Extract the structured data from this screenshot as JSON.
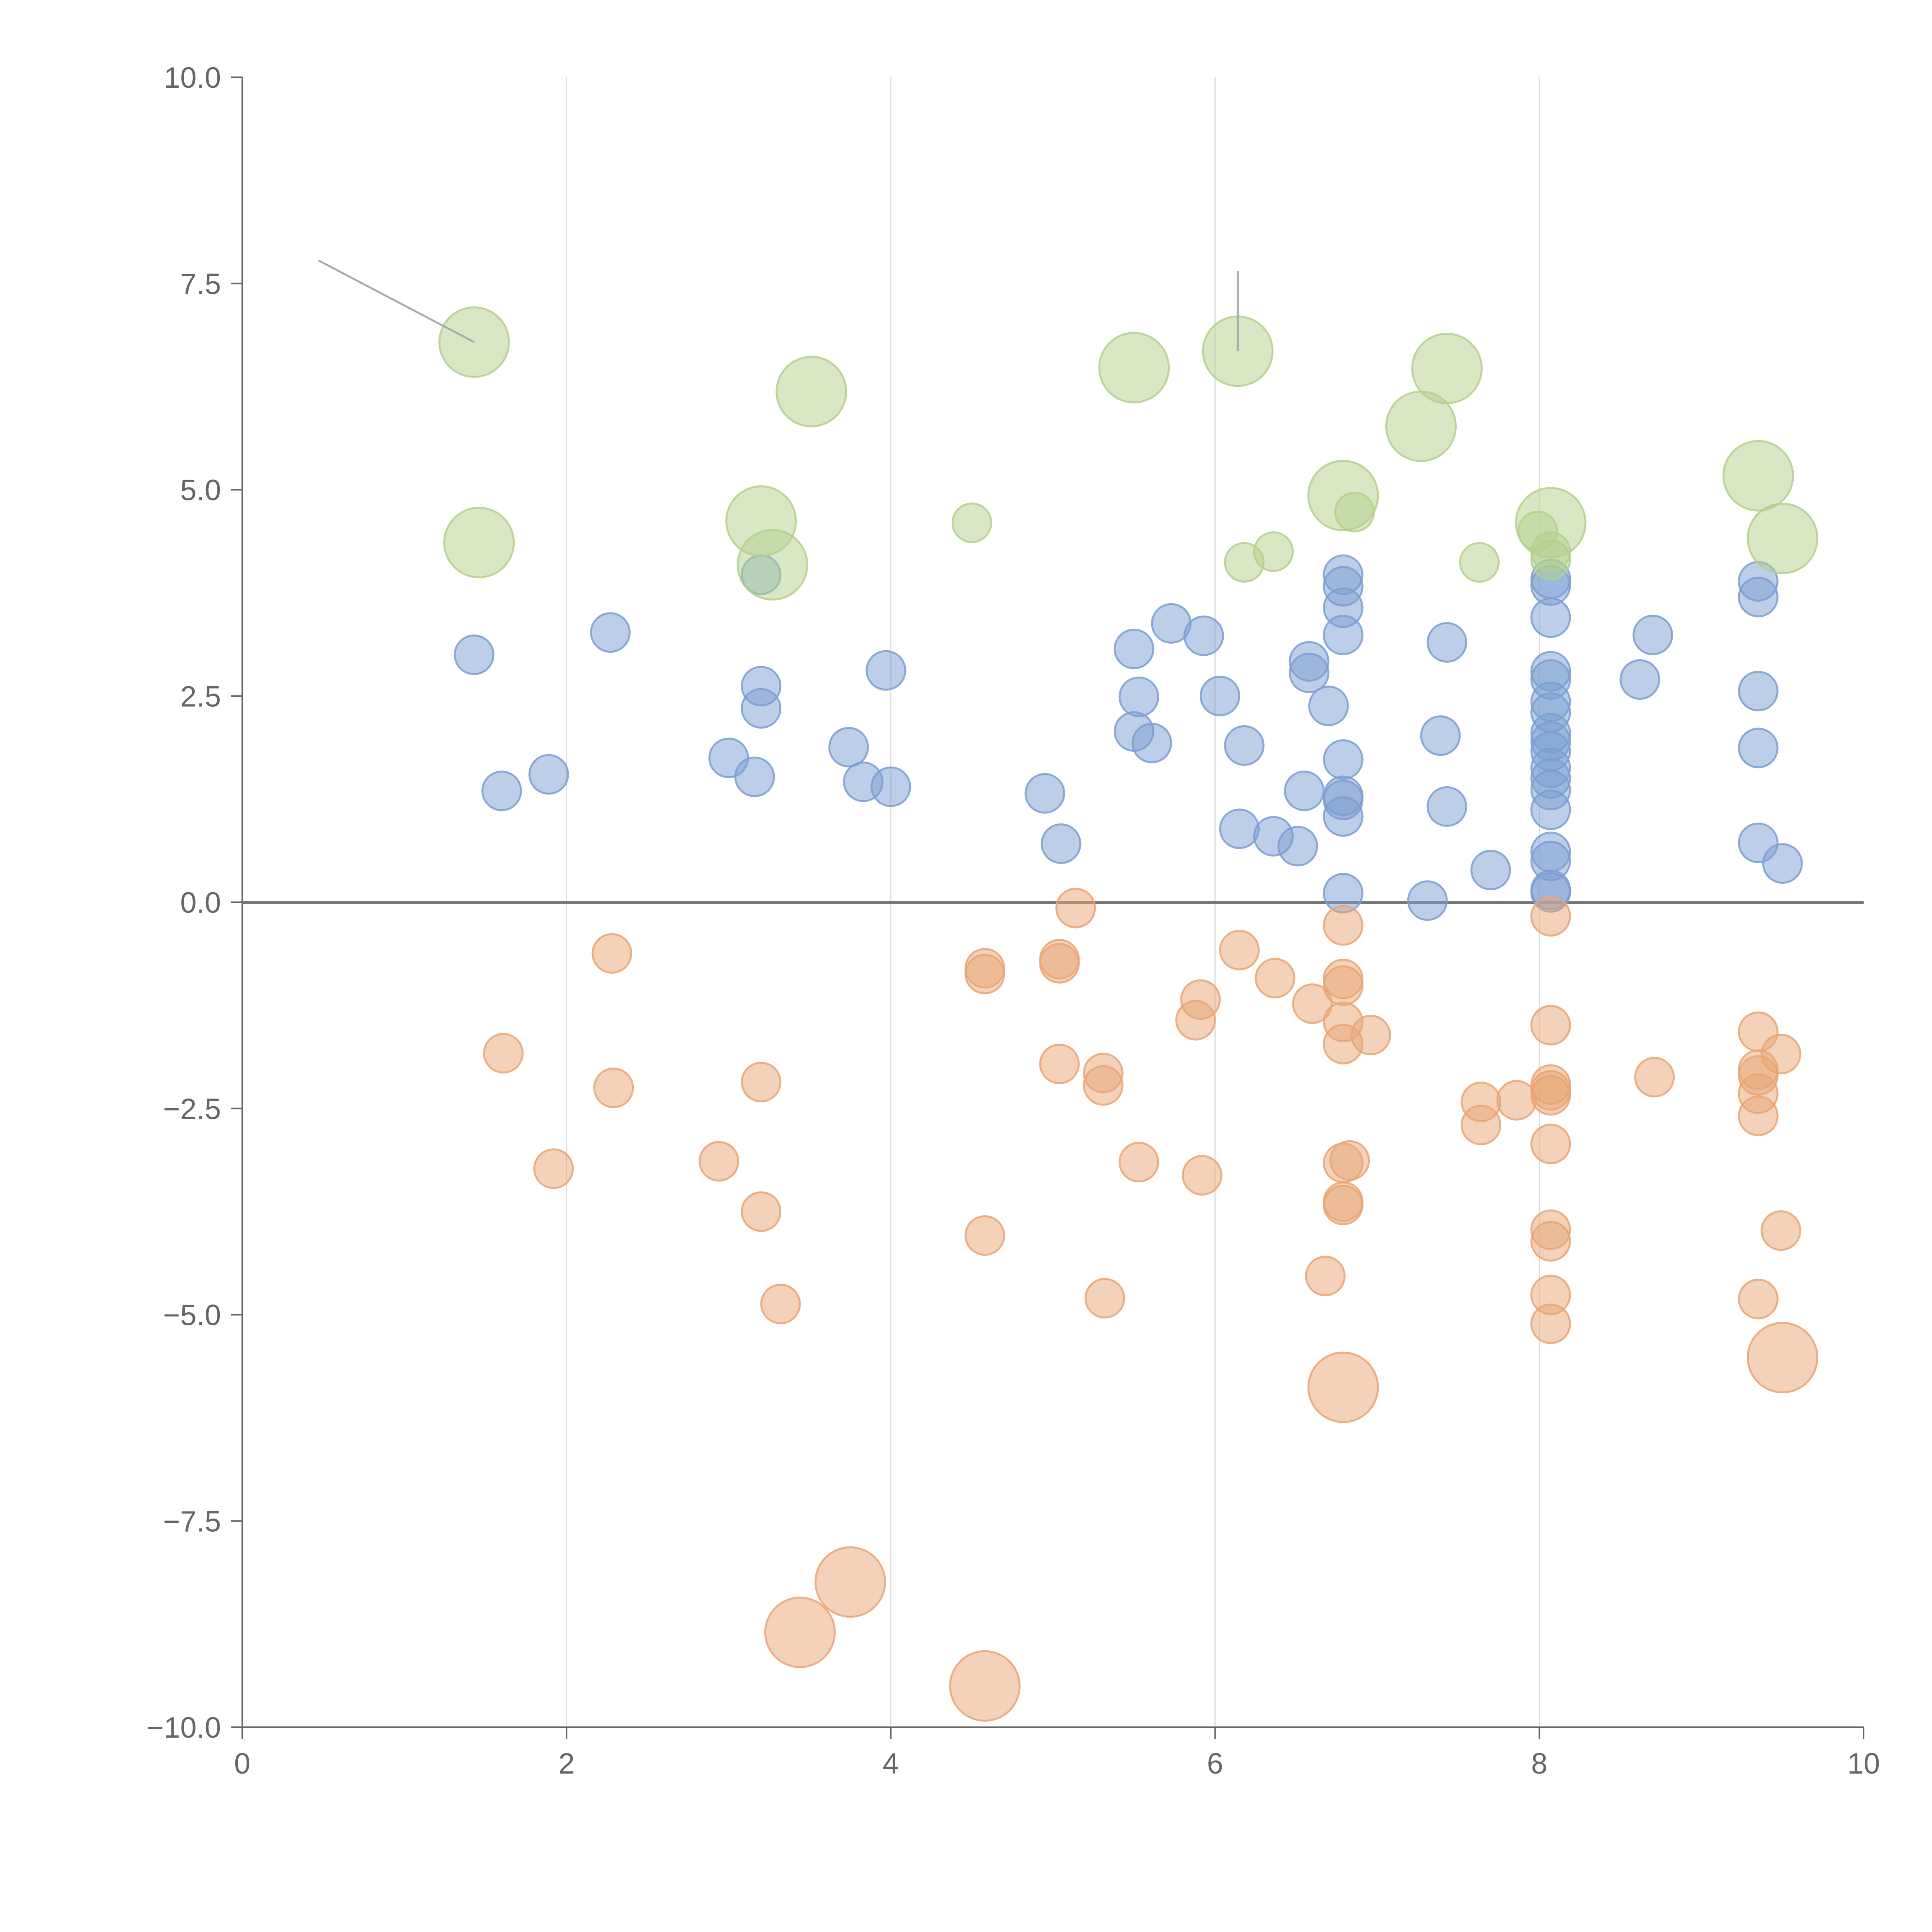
{
  "chart_data": {
    "type": "scatter",
    "title": "",
    "xlabel": "",
    "ylabel": "",
    "xlim": [
      0,
      10
    ],
    "ylim": [
      -10,
      10
    ],
    "x_ticks": [
      0,
      2,
      4,
      6,
      8,
      10
    ],
    "y_ticks": [
      -10,
      -7.5,
      -5,
      -2.5,
      0,
      2.5,
      5,
      7.5,
      10
    ],
    "x_tick_labels": [
      "0",
      "2",
      "4",
      "6",
      "8",
      "10"
    ],
    "y_tick_labels": [
      "−10.0",
      "−7.5",
      "−5.0",
      "−2.5",
      "0.0",
      "2.5",
      "5.0",
      "7.5",
      "10.0"
    ],
    "vertical_gridlines": [
      2,
      4,
      6,
      8
    ],
    "zero_line": 0,
    "colors": {
      "blue": "#7b9ed1",
      "orange": "#e8a574",
      "green": "#b3cf8c",
      "axis": "#666666",
      "grid": "#dddddd",
      "zero": "#777777"
    },
    "series": [
      {
        "name": "blue",
        "color": "#7b9ed1",
        "size": "small",
        "points": [
          [
            1.43,
            3.0
          ],
          [
            1.6,
            1.35
          ],
          [
            1.89,
            1.55
          ],
          [
            2.27,
            3.27
          ],
          [
            3.0,
            1.75
          ],
          [
            3.16,
            1.52
          ],
          [
            3.2,
            2.62
          ],
          [
            3.2,
            2.35
          ],
          [
            3.2,
            3.97
          ],
          [
            3.74,
            1.88
          ],
          [
            3.83,
            1.46
          ],
          [
            3.97,
            2.81
          ],
          [
            4.0,
            1.4
          ],
          [
            4.95,
            1.32
          ],
          [
            5.05,
            0.71
          ],
          [
            5.5,
            3.07
          ],
          [
            5.5,
            2.07
          ],
          [
            5.53,
            2.49
          ],
          [
            5.61,
            1.93
          ],
          [
            5.73,
            3.38
          ],
          [
            5.93,
            3.23
          ],
          [
            6.03,
            2.5
          ],
          [
            6.15,
            0.89
          ],
          [
            6.18,
            1.9
          ],
          [
            6.36,
            0.8
          ],
          [
            6.51,
            0.68
          ],
          [
            6.55,
            1.35
          ],
          [
            6.58,
            2.92
          ],
          [
            6.58,
            2.78
          ],
          [
            6.7,
            2.38
          ],
          [
            6.79,
            3.97
          ],
          [
            6.79,
            3.83
          ],
          [
            6.79,
            3.57
          ],
          [
            6.79,
            3.24
          ],
          [
            6.79,
            1.73
          ],
          [
            6.79,
            1.29
          ],
          [
            6.79,
            1.24
          ],
          [
            6.79,
            1.04
          ],
          [
            6.79,
            0.11
          ],
          [
            7.31,
            0.02
          ],
          [
            7.39,
            2.02
          ],
          [
            7.43,
            3.15
          ],
          [
            7.43,
            1.16
          ],
          [
            7.7,
            0.39
          ],
          [
            8.07,
            3.92
          ],
          [
            8.07,
            3.84
          ],
          [
            8.07,
            3.45
          ],
          [
            8.07,
            2.8
          ],
          [
            8.07,
            2.7
          ],
          [
            8.07,
            2.43
          ],
          [
            8.07,
            2.3
          ],
          [
            8.07,
            2.05
          ],
          [
            8.07,
            1.95
          ],
          [
            8.07,
            1.83
          ],
          [
            8.07,
            1.63
          ],
          [
            8.07,
            1.5
          ],
          [
            8.07,
            1.36
          ],
          [
            8.07,
            1.12
          ],
          [
            8.07,
            0.61
          ],
          [
            8.07,
            0.5
          ],
          [
            8.07,
            0.15
          ],
          [
            8.07,
            0.12
          ],
          [
            8.62,
            2.7
          ],
          [
            8.7,
            3.24
          ],
          [
            9.35,
            3.89
          ],
          [
            9.35,
            3.7
          ],
          [
            9.35,
            2.56
          ],
          [
            9.35,
            1.87
          ],
          [
            9.35,
            0.72
          ],
          [
            9.5,
            0.47
          ]
        ]
      },
      {
        "name": "orange",
        "color": "#e8a574",
        "size": "small",
        "points": [
          [
            1.61,
            -1.83
          ],
          [
            1.92,
            -3.23
          ],
          [
            2.28,
            -0.62
          ],
          [
            2.29,
            -2.25
          ],
          [
            2.94,
            -3.14
          ],
          [
            3.2,
            -2.18
          ],
          [
            3.2,
            -3.75
          ],
          [
            3.32,
            -4.87
          ],
          [
            4.58,
            -0.8
          ],
          [
            4.58,
            -0.87
          ],
          [
            4.58,
            -4.04
          ],
          [
            5.04,
            -0.69
          ],
          [
            5.04,
            -0.74
          ],
          [
            5.04,
            -1.96
          ],
          [
            5.14,
            -0.07
          ],
          [
            5.31,
            -2.07
          ],
          [
            5.31,
            -2.22
          ],
          [
            5.32,
            -4.8
          ],
          [
            5.53,
            -3.15
          ],
          [
            5.88,
            -1.43
          ],
          [
            5.91,
            -1.18
          ],
          [
            5.92,
            -3.31
          ],
          [
            6.15,
            -0.58
          ],
          [
            6.37,
            -0.92
          ],
          [
            6.6,
            -1.23
          ],
          [
            6.68,
            -4.53
          ],
          [
            6.79,
            -0.28
          ],
          [
            6.79,
            -0.93
          ],
          [
            6.79,
            -1.01
          ],
          [
            6.79,
            -1.45
          ],
          [
            6.79,
            -1.72
          ],
          [
            6.79,
            -3.16
          ],
          [
            6.83,
            -3.13
          ],
          [
            6.79,
            -3.63
          ],
          [
            6.79,
            -3.67
          ],
          [
            6.96,
            -1.61
          ],
          [
            7.64,
            -2.42
          ],
          [
            7.64,
            -2.7
          ],
          [
            7.86,
            -2.4
          ],
          [
            8.07,
            -0.17
          ],
          [
            8.07,
            -1.49
          ],
          [
            8.07,
            -2.21
          ],
          [
            8.07,
            -2.28
          ],
          [
            8.07,
            -2.34
          ],
          [
            8.07,
            -2.93
          ],
          [
            8.07,
            -3.97
          ],
          [
            8.07,
            -4.11
          ],
          [
            8.07,
            -4.76
          ],
          [
            8.07,
            -5.11
          ],
          [
            8.71,
            -2.12
          ],
          [
            9.35,
            -1.57
          ],
          [
            9.35,
            -2.03
          ],
          [
            9.35,
            -2.1
          ],
          [
            9.35,
            -2.32
          ],
          [
            9.35,
            -2.59
          ],
          [
            9.35,
            -4.81
          ],
          [
            9.49,
            -1.84
          ],
          [
            9.49,
            -3.98
          ]
        ]
      },
      {
        "name": "green",
        "color": "#b3cf8c",
        "size": "small",
        "points": [
          [
            4.5,
            4.6
          ],
          [
            6.18,
            4.12
          ],
          [
            6.36,
            4.25
          ],
          [
            6.86,
            4.73
          ],
          [
            7.63,
            4.12
          ],
          [
            7.99,
            4.5
          ],
          [
            8.07,
            4.25
          ],
          [
            8.07,
            4.15
          ]
        ]
      },
      {
        "name": "green-large",
        "color": "#b3cf8c",
        "size": "large",
        "points": [
          [
            1.43,
            6.79
          ],
          [
            1.46,
            4.36
          ],
          [
            3.2,
            4.62
          ],
          [
            3.27,
            4.09
          ],
          [
            3.51,
            6.19
          ],
          [
            5.5,
            6.48
          ],
          [
            6.14,
            6.68
          ],
          [
            6.79,
            4.93
          ],
          [
            7.27,
            5.77
          ],
          [
            7.43,
            6.47
          ],
          [
            8.07,
            4.6
          ],
          [
            9.35,
            5.17
          ],
          [
            9.5,
            4.41
          ]
        ]
      },
      {
        "name": "orange-large",
        "color": "#e8a574",
        "size": "large",
        "points": [
          [
            3.44,
            -8.85
          ],
          [
            3.75,
            -8.24
          ],
          [
            4.58,
            -9.5
          ],
          [
            6.79,
            -5.88
          ],
          [
            9.5,
            -5.52
          ]
        ]
      }
    ]
  }
}
